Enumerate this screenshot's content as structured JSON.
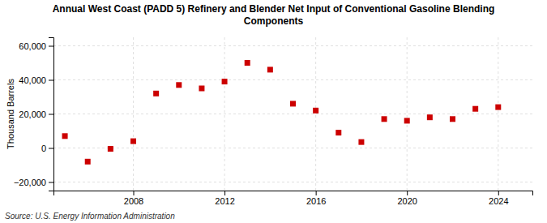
{
  "chart_data": {
    "type": "scatter",
    "title": "Annual West Coast (PADD 5) Refinery and Blender Net Input of Conventional Gasoline Blending\nComponents",
    "ylabel": "Thousand Barrels",
    "source": "Source: U.S. Energy Information Administration",
    "x": [
      2005,
      2006,
      2007,
      2008,
      2009,
      2010,
      2011,
      2012,
      2013,
      2014,
      2015,
      2016,
      2017,
      2018,
      2019,
      2020,
      2021,
      2022,
      2023,
      2024
    ],
    "values": [
      7000,
      -8000,
      -500,
      4000,
      32000,
      37000,
      35000,
      39000,
      50000,
      46000,
      26000,
      22000,
      9000,
      3500,
      17000,
      16000,
      18000,
      17000,
      23000,
      24000
    ],
    "color": "#cc0000",
    "marker": "square",
    "xlim": [
      2004.5,
      2025.5
    ],
    "ylim": [
      -25000,
      65000
    ],
    "xticks": [
      2008,
      2012,
      2016,
      2020,
      2024
    ],
    "yticks": [
      {
        "value": -20000,
        "label": "−20,000"
      },
      0,
      {
        "value": 20000,
        "label": "20,000"
      },
      {
        "value": 40000,
        "label": "40,000"
      },
      {
        "value": 60000,
        "label": "60,000"
      }
    ],
    "grid": true
  }
}
